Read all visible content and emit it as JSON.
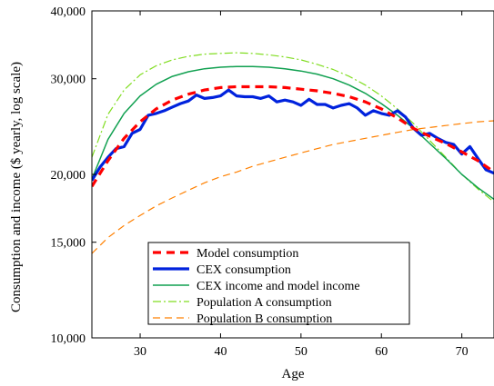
{
  "chart_data": {
    "type": "line",
    "title": "",
    "xlabel": "Age",
    "ylabel": "Consumption and income ($ yearly, log scale)",
    "xlim": [
      24,
      74
    ],
    "ylim": [
      10000,
      40000
    ],
    "y_scale": "log",
    "grid": false,
    "legend_position": "lower-center",
    "x_ticks": [
      30,
      40,
      50,
      60,
      70
    ],
    "x_tick_labels": [
      "30",
      "40",
      "50",
      "60",
      "70"
    ],
    "y_ticks": [
      10000,
      15000,
      20000,
      30000,
      40000
    ],
    "y_tick_labels": [
      "10,000",
      "15,000",
      "20,000",
      "30,000",
      "40,000"
    ],
    "series": [
      {
        "name": "Model consumption",
        "color": "#ff0000",
        "style": "dashed-thick",
        "x": [
          24,
          26,
          28,
          30,
          32,
          34,
          36,
          38,
          40,
          42,
          44,
          46,
          48,
          50,
          52,
          54,
          56,
          58,
          60,
          62,
          64,
          66,
          68,
          70,
          72,
          74
        ],
        "y": [
          19000,
          21200,
          23300,
          25000,
          26400,
          27400,
          28100,
          28600,
          28900,
          29000,
          29000,
          29000,
          28900,
          28700,
          28500,
          28200,
          27800,
          27200,
          26400,
          25400,
          24300,
          23500,
          22800,
          22000,
          21200,
          20200
        ]
      },
      {
        "name": "CEX consumption",
        "color": "#0022dd",
        "style": "solid-thick",
        "x": [
          24,
          25,
          26,
          27,
          28,
          29,
          30,
          31,
          32,
          33,
          34,
          35,
          36,
          37,
          38,
          39,
          40,
          41,
          42,
          43,
          44,
          45,
          46,
          47,
          48,
          49,
          50,
          51,
          52,
          53,
          54,
          55,
          56,
          57,
          58,
          59,
          60,
          61,
          62,
          63,
          64,
          65,
          66,
          67,
          68,
          69,
          70,
          71,
          72,
          73,
          74
        ],
        "y": [
          19500,
          20600,
          21500,
          22300,
          22500,
          23800,
          24200,
          25700,
          25900,
          26200,
          26600,
          27000,
          27300,
          28000,
          27600,
          27700,
          27900,
          28600,
          27900,
          27800,
          27800,
          27600,
          27900,
          27200,
          27400,
          27200,
          26800,
          27500,
          26900,
          26900,
          26500,
          26800,
          27000,
          26500,
          25700,
          26200,
          25900,
          25700,
          26200,
          25500,
          24300,
          23600,
          23800,
          23300,
          22900,
          22700,
          21800,
          22500,
          21400,
          20400,
          20100
        ]
      },
      {
        "name": "CEX income and model income",
        "color": "#10a050",
        "style": "solid",
        "x": [
          24,
          26,
          28,
          30,
          32,
          34,
          36,
          38,
          40,
          42,
          44,
          46,
          48,
          50,
          52,
          54,
          56,
          58,
          60,
          62,
          64,
          66,
          68,
          70,
          72,
          74
        ],
        "y": [
          19600,
          23200,
          25900,
          27900,
          29300,
          30300,
          30900,
          31300,
          31500,
          31600,
          31600,
          31500,
          31300,
          31000,
          30600,
          30000,
          29200,
          28200,
          27000,
          25700,
          24300,
          22800,
          21400,
          20000,
          18900,
          18000
        ]
      },
      {
        "name": "Population A consumption",
        "color": "#80dd20",
        "style": "dash-dot",
        "x": [
          24,
          26,
          28,
          30,
          32,
          34,
          36,
          38,
          40,
          42,
          44,
          46,
          48,
          50,
          52,
          54,
          56,
          58,
          60,
          62,
          64,
          66,
          68,
          70,
          72,
          74
        ],
        "y": [
          21500,
          25800,
          28600,
          30500,
          31700,
          32500,
          33000,
          33300,
          33400,
          33500,
          33400,
          33200,
          32900,
          32500,
          31900,
          31200,
          30300,
          29200,
          27900,
          26400,
          24800,
          23100,
          21500,
          20000,
          18800,
          17800
        ]
      },
      {
        "name": "Population B consumption",
        "color": "#ff8000",
        "style": "dashed",
        "x": [
          24,
          26,
          28,
          30,
          32,
          34,
          36,
          38,
          40,
          42,
          44,
          46,
          48,
          50,
          52,
          54,
          56,
          58,
          60,
          62,
          64,
          66,
          68,
          70,
          72,
          74
        ],
        "y": [
          14300,
          15300,
          16100,
          16800,
          17500,
          18100,
          18700,
          19300,
          19800,
          20200,
          20700,
          21100,
          21500,
          21900,
          22300,
          22700,
          23000,
          23300,
          23600,
          23900,
          24200,
          24400,
          24600,
          24800,
          25000,
          25100
        ]
      }
    ]
  }
}
